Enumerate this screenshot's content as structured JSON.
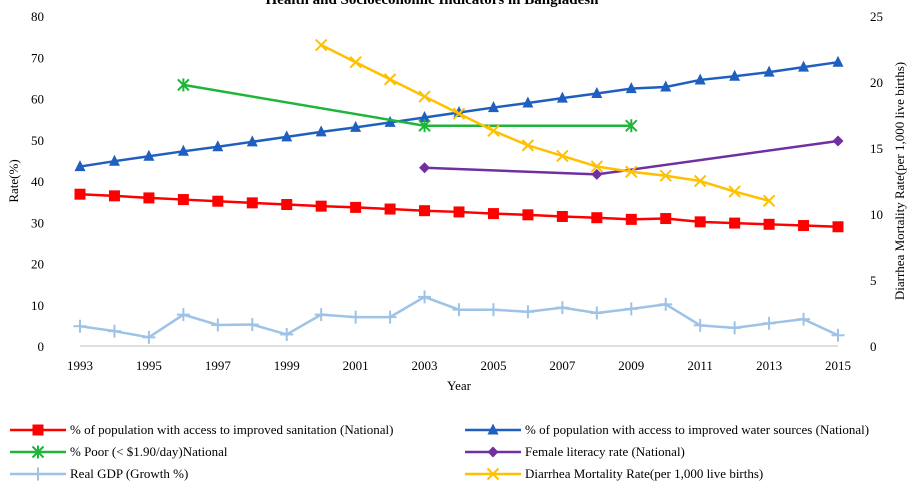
{
  "chart_data": {
    "type": "line",
    "title": "Health and Socioeconomic Indicators in Bangladesh",
    "xlabel": "Year",
    "ylabel": "Rate(%)",
    "y2label": "Diarrhea Mortality Rate(per 1,000 live births)",
    "x_ticks": [
      "1993",
      "1995",
      "1997",
      "1999",
      "2001",
      "2003",
      "2005",
      "2007",
      "2009",
      "2011",
      "2013",
      "2015"
    ],
    "x_range": [
      1993,
      2015
    ],
    "ylim": [
      0,
      80
    ],
    "y_ticks": [
      "0",
      "10",
      "20",
      "30",
      "40",
      "50",
      "60",
      "70",
      "80"
    ],
    "y2lim": [
      0,
      25
    ],
    "y2_ticks": [
      "0",
      "5",
      "10",
      "15",
      "20",
      "25"
    ],
    "grid": false,
    "series": [
      {
        "name": "% of population with access to improved sanitation (National)",
        "color": "#ff0000",
        "marker": "square",
        "axis": "left",
        "x": [
          1993,
          1994,
          1995,
          1996,
          1997,
          1998,
          1999,
          2000,
          2001,
          2002,
          2003,
          2004,
          2005,
          2006,
          2007,
          2008,
          2009,
          2010,
          2011,
          2012,
          2013,
          2014,
          2015
        ],
        "y": [
          36.8,
          36.4,
          35.9,
          35.5,
          35.1,
          34.7,
          34.3,
          33.9,
          33.6,
          33.2,
          32.8,
          32.5,
          32.1,
          31.8,
          31.4,
          31.1,
          30.7,
          30.9,
          30.1,
          29.8,
          29.5,
          29.2,
          28.9
        ]
      },
      {
        "name": "% of population with access to improved water sources (National)",
        "color": "#1f5fbf",
        "marker": "triangle",
        "axis": "left",
        "x": [
          1993,
          1994,
          1995,
          1996,
          1997,
          1998,
          1999,
          2000,
          2001,
          2002,
          2003,
          2004,
          2005,
          2006,
          2007,
          2008,
          2009,
          2010,
          2011,
          2012,
          2013,
          2014,
          2015
        ],
        "y": [
          43.5,
          44.8,
          46.0,
          47.2,
          48.3,
          49.5,
          50.7,
          51.9,
          53.0,
          54.2,
          55.4,
          56.6,
          57.8,
          58.9,
          60.1,
          61.2,
          62.4,
          62.8,
          64.5,
          65.4,
          66.4,
          67.6,
          68.8
        ]
      },
      {
        "name": "% Poor (< $1.90/day)National",
        "color": "#1fb53a",
        "marker": "asterisk",
        "axis": "left",
        "x": [
          1996,
          2003,
          2009
        ],
        "y": [
          63.3,
          53.4,
          53.4
        ]
      },
      {
        "name": "Female literacy rate (National)",
        "color": "#7030a0",
        "marker": "diamond",
        "axis": "left",
        "x": [
          2003,
          2008,
          2015
        ],
        "y": [
          43.2,
          41.6,
          49.7
        ]
      },
      {
        "name": "Real GDP (Growth %)",
        "color": "#9dc3e6",
        "marker": "plus",
        "axis": "left",
        "x": [
          1993,
          1994,
          1995,
          1996,
          1997,
          1998,
          1999,
          2000,
          2001,
          2002,
          2003,
          2004,
          2005,
          2006,
          2007,
          2008,
          2009,
          2010,
          2011,
          2012,
          2013,
          2014,
          2015
        ],
        "y": [
          4.8,
          3.6,
          2.1,
          7.6,
          5.1,
          5.2,
          2.8,
          7.6,
          7.0,
          7.0,
          11.9,
          8.8,
          8.8,
          8.3,
          9.3,
          8.0,
          9.0,
          10.1,
          5.0,
          4.4,
          5.5,
          6.5,
          2.6
        ]
      },
      {
        "name": "Diarrhea Mortality Rate(per 1,000 live births)",
        "color": "#ffc000",
        "marker": "x",
        "axis": "right",
        "x": [
          2000,
          2001,
          2002,
          2003,
          2004,
          2005,
          2006,
          2007,
          2008,
          2009,
          2010,
          2011,
          2012,
          2013
        ],
        "y": [
          22.8,
          21.5,
          20.2,
          18.9,
          17.6,
          16.3,
          15.2,
          14.4,
          13.6,
          13.2,
          12.9,
          12.5,
          11.7,
          11.0
        ]
      }
    ]
  }
}
